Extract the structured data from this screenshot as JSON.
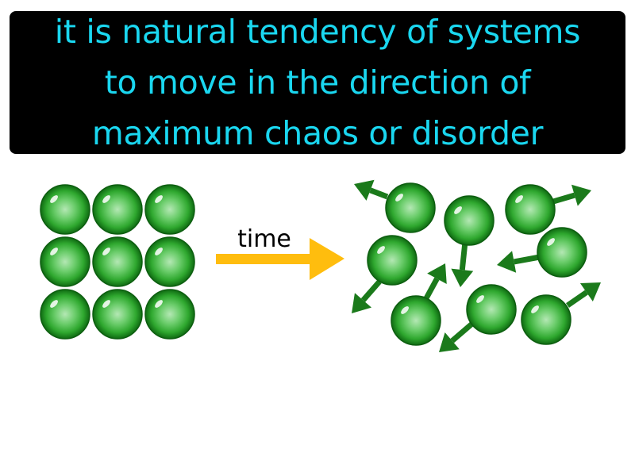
{
  "definition": {
    "text": "it is natural tendency of systems\nto move in the direction  of\nmaximum chaos or disorder"
  },
  "diagram": {
    "time_label": "time",
    "colors": {
      "banner_background": "#000000",
      "definition_text": "#1ad7f0",
      "time_arrow": "#ffbd0e",
      "particle": "#2fa82f",
      "particle_arrow": "#1b7a1b"
    },
    "ordered_state": {
      "description": "3x3 grid of particles, no motion"
    },
    "disordered_state": {
      "description": "scattered particles each with a motion arrow"
    }
  }
}
